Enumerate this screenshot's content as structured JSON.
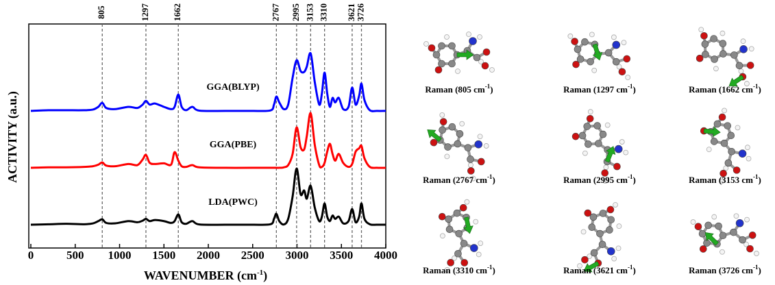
{
  "chart_data": {
    "type": "line",
    "xlabel": [
      "WAVENUMBER (cm",
      "-1",
      ")"
    ],
    "ylabel": "ACTIVITY (a.u.)",
    "x": [
      0,
      200,
      400,
      600,
      700,
      760,
      805,
      850,
      950,
      1100,
      1200,
      1260,
      1297,
      1340,
      1400,
      1500,
      1580,
      1620,
      1662,
      1700,
      1750,
      1820,
      1900,
      2200,
      2500,
      2700,
      2740,
      2767,
      2800,
      2850,
      2900,
      2950,
      2995,
      3040,
      3080,
      3110,
      3153,
      3200,
      3250,
      3280,
      3310,
      3340,
      3370,
      3400,
      3430,
      3470,
      3520,
      3580,
      3621,
      3660,
      3700,
      3726,
      3760,
      3820,
      3900,
      4000
    ],
    "series": [
      {
        "name": "GGA(BLYP)",
        "color": "#0000ff",
        "values": [
          6.12,
          6.15,
          6.15,
          6.15,
          6.18,
          6.3,
          6.48,
          6.25,
          6.2,
          6.3,
          6.25,
          6.4,
          6.57,
          6.4,
          6.45,
          6.3,
          6.2,
          6.3,
          6.85,
          6.3,
          6.15,
          6.3,
          6.13,
          6.12,
          6.12,
          6.14,
          6.4,
          6.76,
          6.5,
          6.2,
          6.4,
          7.6,
          8.38,
          7.9,
          7.86,
          8.1,
          8.69,
          7.4,
          6.4,
          6.9,
          7.83,
          6.9,
          6.3,
          6.7,
          6.5,
          6.7,
          6.2,
          6.3,
          7.16,
          6.4,
          6.8,
          7.34,
          6.6,
          6.15,
          6.12,
          6.12
        ]
      },
      {
        "name": "GGA(PBE)",
        "color": "#ff0000",
        "values": [
          3.58,
          3.6,
          3.6,
          3.62,
          3.65,
          3.72,
          3.82,
          3.68,
          3.65,
          3.75,
          3.7,
          3.95,
          4.16,
          3.8,
          3.75,
          3.78,
          3.72,
          4.28,
          3.9,
          3.65,
          3.62,
          3.7,
          3.6,
          3.58,
          3.58,
          3.58,
          3.58,
          3.58,
          3.58,
          3.6,
          3.7,
          4.2,
          5.38,
          4.5,
          4.4,
          5.0,
          6.02,
          4.6,
          3.7,
          3.62,
          3.8,
          4.3,
          4.65,
          4.2,
          3.9,
          4.2,
          3.8,
          3.62,
          3.75,
          4.3,
          4.45,
          4.56,
          4.0,
          3.62,
          3.58,
          3.58
        ]
      },
      {
        "name": "LDA(PWC)",
        "color": "#000000",
        "values": [
          1.04,
          1.06,
          1.08,
          1.06,
          1.1,
          1.2,
          1.28,
          1.12,
          1.1,
          1.2,
          1.15,
          1.22,
          1.3,
          1.2,
          1.25,
          1.2,
          1.12,
          1.2,
          1.5,
          1.15,
          1.08,
          1.2,
          1.05,
          1.04,
          1.04,
          1.06,
          1.3,
          1.53,
          1.2,
          1.05,
          1.3,
          2.3,
          3.55,
          2.4,
          2.57,
          2.2,
          2.78,
          1.8,
          1.2,
          1.4,
          1.99,
          1.4,
          1.2,
          1.45,
          1.3,
          1.4,
          1.1,
          1.2,
          1.74,
          1.15,
          1.4,
          1.99,
          1.3,
          1.06,
          1.04,
          1.04
        ]
      }
    ],
    "peaks": [
      805,
      1297,
      1662,
      2767,
      2995,
      3153,
      3310,
      3621,
      3726
    ],
    "xlim": [
      0,
      4000
    ],
    "xticks": [
      0,
      500,
      1000,
      1500,
      2000,
      2500,
      3000,
      3500,
      4000
    ],
    "ylim": [
      0,
      10
    ],
    "yticks": []
  },
  "panels": [
    {
      "caption": [
        "Raman (805 cm",
        "-1",
        ")"
      ]
    },
    {
      "caption": [
        "Raman (1297 cm",
        "-1",
        ")"
      ]
    },
    {
      "caption": [
        "Raman (1662 cm",
        "-1",
        ")"
      ]
    },
    {
      "caption": [
        "Raman (2767 cm",
        "-1",
        ")"
      ]
    },
    {
      "caption": [
        "Raman (2995 cm",
        "-1",
        ")"
      ]
    },
    {
      "caption": [
        "Raman (3153 cm",
        "-1",
        ")"
      ]
    },
    {
      "caption": [
        "Raman (3310 cm",
        "-1",
        ")"
      ]
    },
    {
      "caption": [
        "Raman (3621 cm",
        "-1",
        ")"
      ]
    },
    {
      "caption": [
        "Raman (3726 cm",
        "-1",
        ")"
      ]
    }
  ]
}
